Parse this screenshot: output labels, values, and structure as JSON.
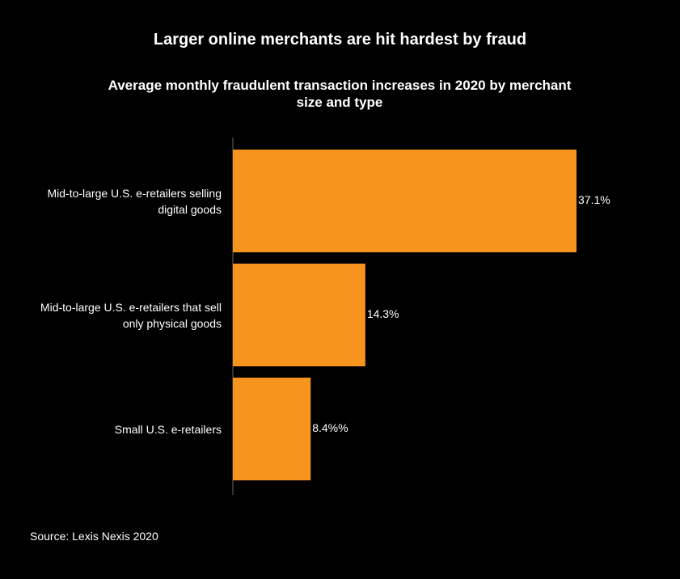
{
  "colors": {
    "background": "#000000",
    "bar": "#f7941e",
    "text": "#ffffff",
    "axis": "#666666"
  },
  "chart_data": {
    "type": "bar",
    "orientation": "horizontal",
    "title": "Larger online merchants are hit hardest by fraud",
    "subtitle": "Average monthly fraudulent transaction increases in 2020 by merchant size and type",
    "categories": [
      "Mid-to-large U.S. e-retailers selling digital goods",
      "Mid-to-large U.S. e-retailers that sell only physical goods",
      "Small U.S. e-retailers"
    ],
    "values": [
      37.1,
      14.3,
      8.4
    ],
    "data_labels": [
      "37.1%",
      "14.3%",
      "8.4%%"
    ],
    "xlabel": "",
    "ylabel": "",
    "xlim": [
      0,
      37.1
    ],
    "grid": false,
    "legend": "none",
    "source": "Source: Lexis Nexis 2020"
  }
}
